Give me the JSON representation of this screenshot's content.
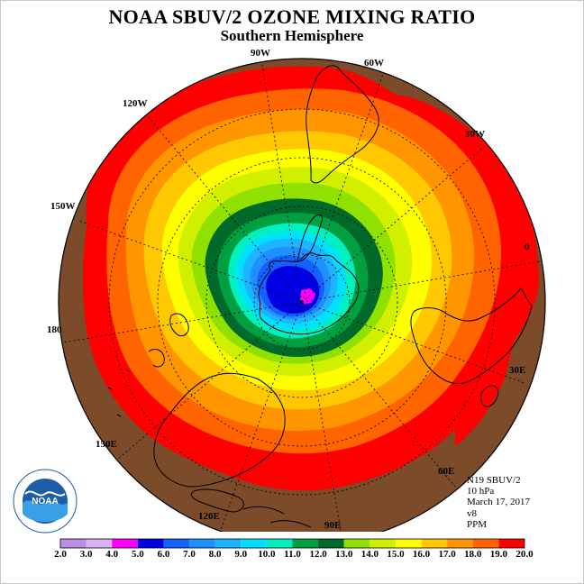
{
  "header": {
    "title": "NOAA SBUV/2 OZONE MIXING RATIO",
    "subtitle": "Southern Hemisphere"
  },
  "map": {
    "projection": "polar stereographic, south pole",
    "longitude_labels": [
      "90W",
      "60W",
      "30W",
      "0",
      "30E",
      "60E",
      "90E",
      "120E",
      "150E",
      "180",
      "150W",
      "120W"
    ],
    "colors": {
      "background_land": "#7b4b2a",
      "coastline": "#000000",
      "grid": "#000000"
    }
  },
  "info": {
    "satellite": "N19 SBUV/2",
    "level": "10 hPa",
    "date": "March 17, 2017",
    "version": "v8",
    "units": "PPM"
  },
  "colorbar": {
    "ticks": [
      "2.0",
      "3.0",
      "4.0",
      "5.0",
      "6.0",
      "7.0",
      "8.0",
      "9.0",
      "10.0",
      "11.0",
      "12.0",
      "13.0",
      "14.0",
      "15.0",
      "16.0",
      "17.0",
      "18.0",
      "19.0",
      "20.0"
    ],
    "colors": [
      "#b98ce6",
      "#d8b4f4",
      "#ff00ff",
      "#0000e6",
      "#1560ff",
      "#1e90ff",
      "#1eb4ff",
      "#00e0ff",
      "#00f0c0",
      "#00a040",
      "#006a2a",
      "#90e000",
      "#d0f000",
      "#ffff00",
      "#ffc800",
      "#ff9600",
      "#ff6400",
      "#ff0000",
      "#7b4b2a"
    ]
  },
  "logo": {
    "text": "NOAA"
  }
}
